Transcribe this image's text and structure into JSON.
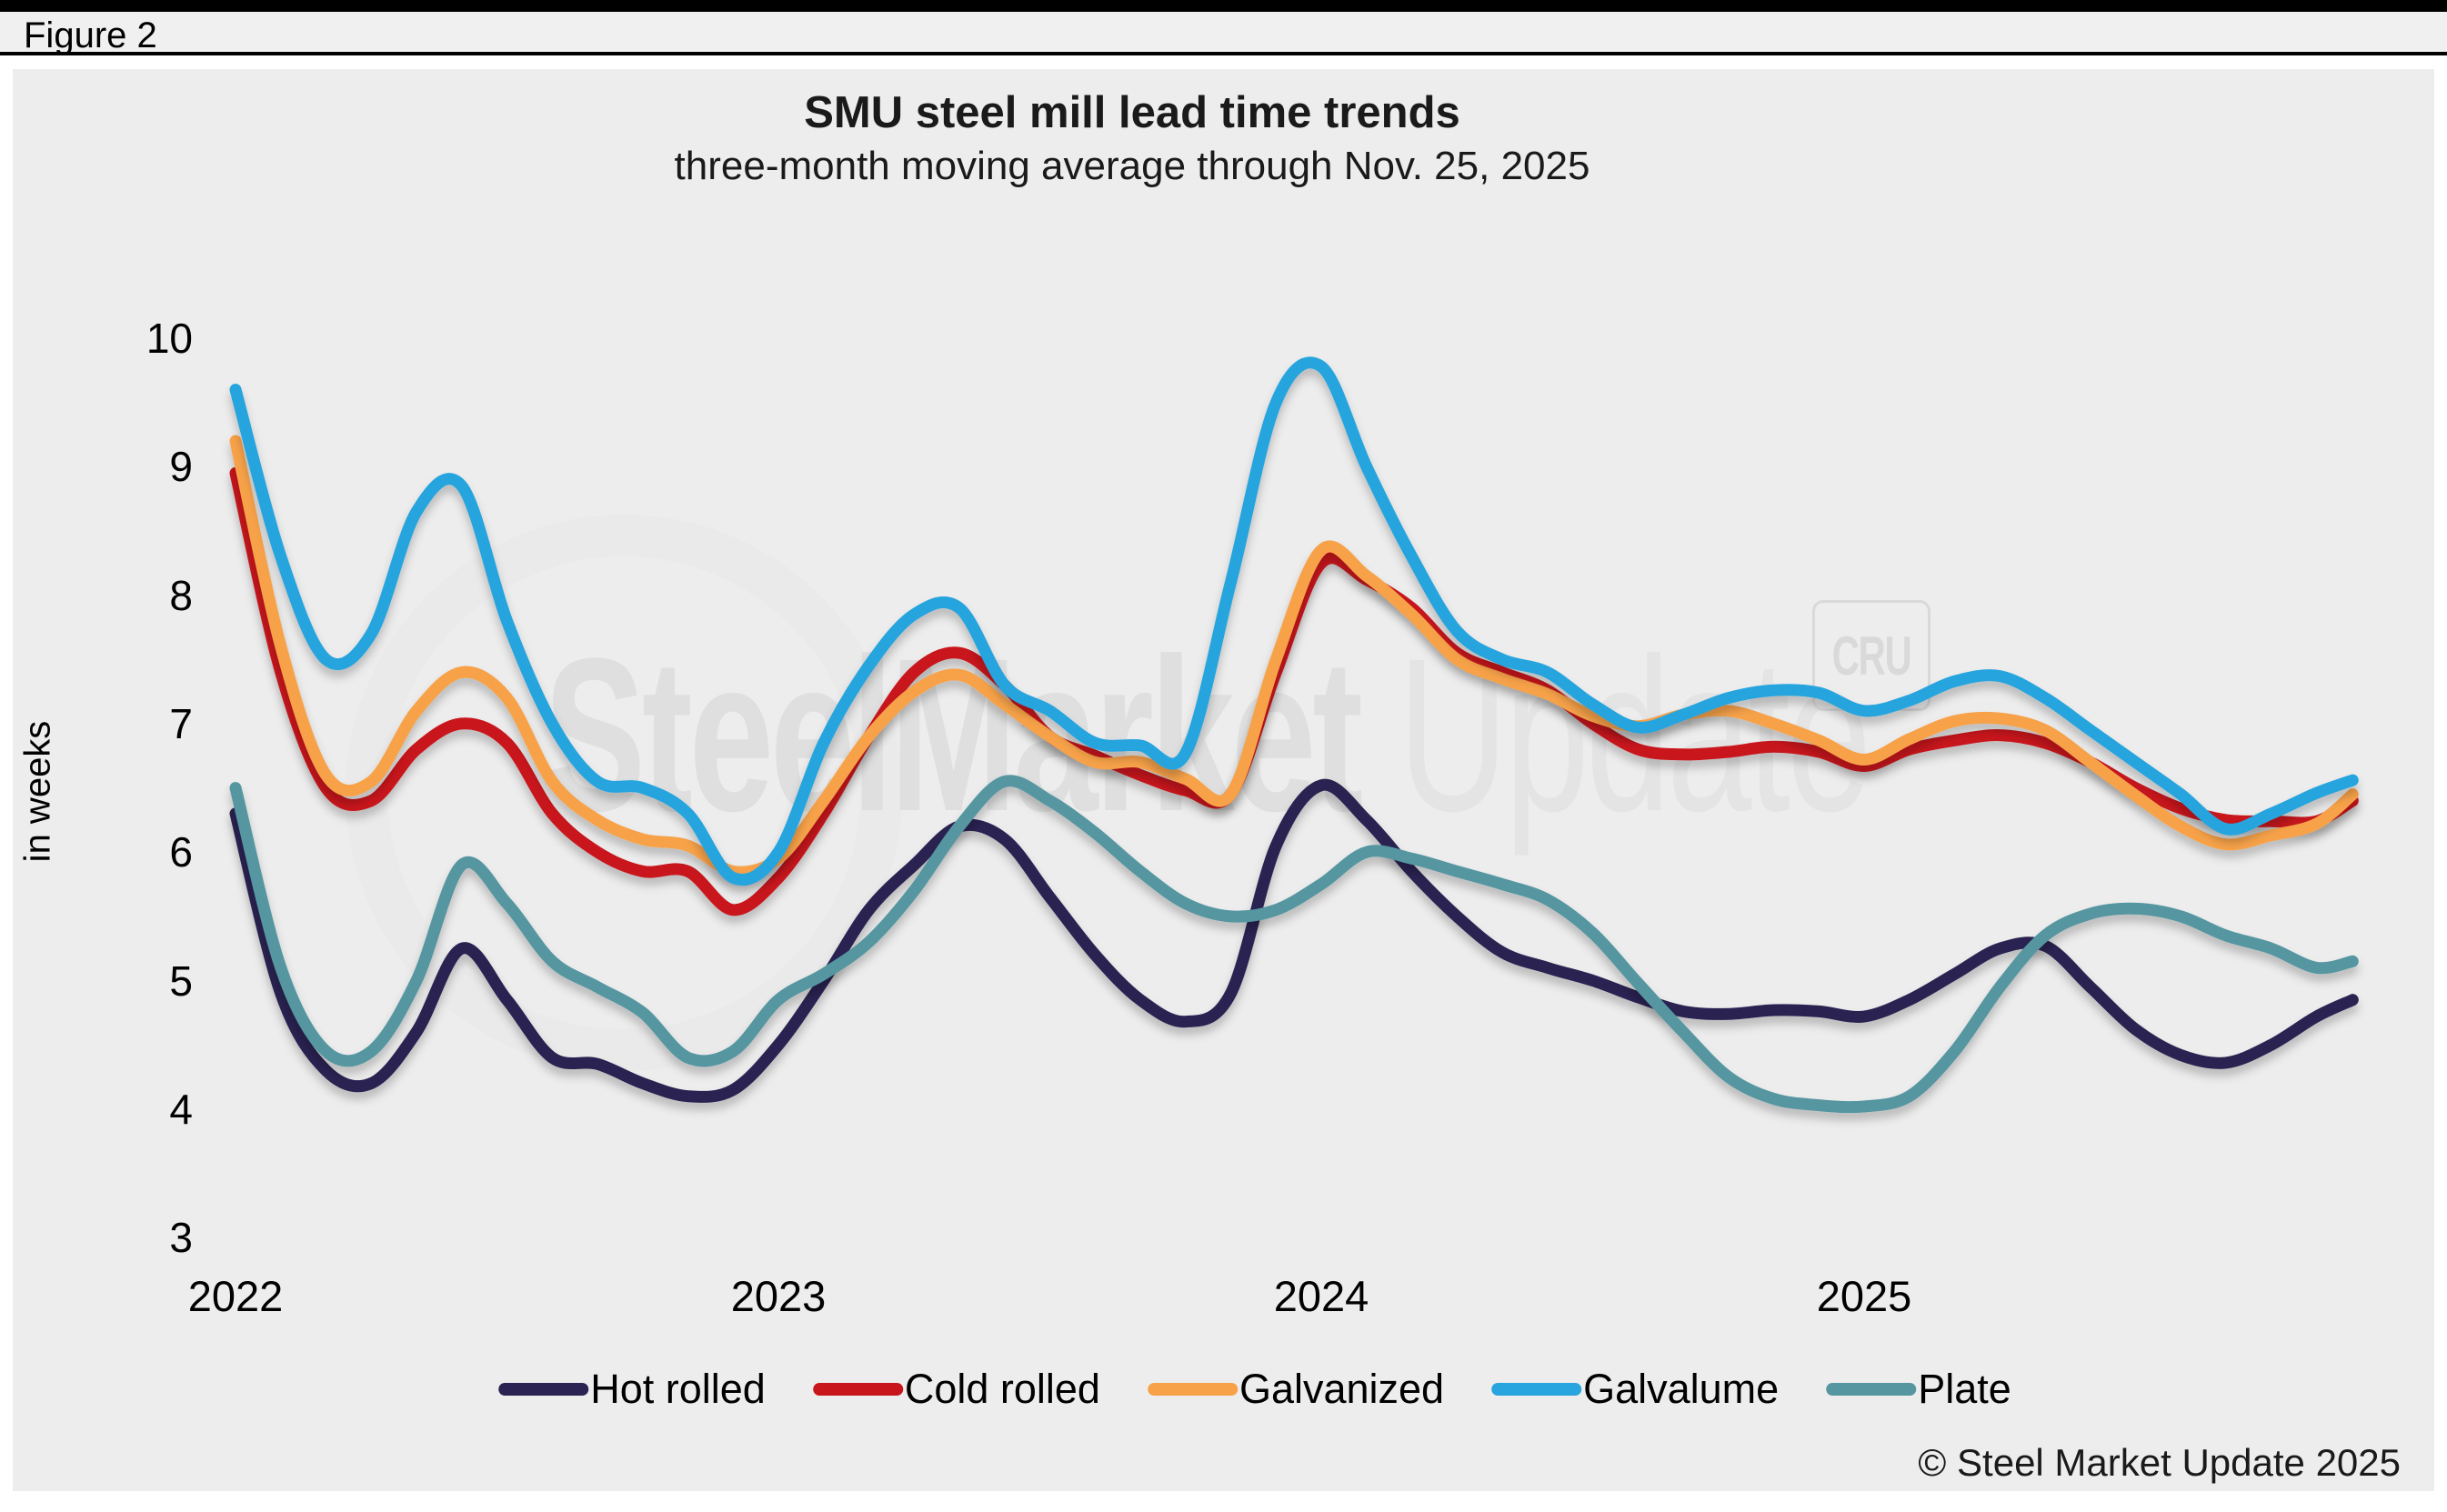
{
  "figure_label": "Figure 2",
  "chart_data": {
    "type": "line",
    "title": "SMU steel mill lead time trends",
    "subtitle": "three-month moving average through Nov. 25, 2025",
    "ylabel": "in weeks",
    "ylim": [
      3,
      10
    ],
    "y_ticks": [
      10,
      9,
      8,
      7,
      6,
      5,
      4,
      3
    ],
    "x_ticks": [
      {
        "label": "2022",
        "month": 0
      },
      {
        "label": "2023",
        "month": 12
      },
      {
        "label": "2024",
        "month": 24
      },
      {
        "label": "2025",
        "month": 36
      }
    ],
    "x_unit": "months since Jan 2022, last point Nov 25 2025",
    "grid": false,
    "legend_position": "bottom",
    "months": [
      0,
      1,
      2,
      3,
      4,
      5,
      6,
      7,
      8,
      9,
      10,
      11,
      12,
      13,
      14,
      15,
      16,
      17,
      18,
      19,
      20,
      21,
      22,
      23,
      24,
      25,
      26,
      27,
      28,
      29,
      30,
      31,
      32,
      33,
      34,
      35,
      36,
      37,
      38,
      39,
      40,
      41,
      42,
      43,
      44,
      45,
      46,
      46.8
    ],
    "series": [
      {
        "name": "Hot rolled",
        "color": "#2b2351",
        "values": [
          6.3,
          4.9,
          4.3,
          4.2,
          4.6,
          5.25,
          4.85,
          4.4,
          4.35,
          4.2,
          4.1,
          4.15,
          4.5,
          5.0,
          5.55,
          5.9,
          6.2,
          6.1,
          5.65,
          5.2,
          4.85,
          4.68,
          4.9,
          6.05,
          6.52,
          6.25,
          5.85,
          5.5,
          5.22,
          5.1,
          5.0,
          4.87,
          4.76,
          4.74,
          4.77,
          4.76,
          4.72,
          4.85,
          5.05,
          5.25,
          5.27,
          4.95,
          4.62,
          4.42,
          4.36,
          4.5,
          4.72,
          4.85
        ]
      },
      {
        "name": "Cold rolled",
        "color": "#c8151c",
        "values": [
          8.95,
          7.4,
          6.5,
          6.4,
          6.8,
          7.0,
          6.85,
          6.3,
          6.0,
          5.85,
          5.85,
          5.55,
          5.8,
          6.3,
          6.9,
          7.4,
          7.55,
          7.3,
          6.9,
          6.75,
          6.6,
          6.48,
          6.45,
          7.4,
          8.25,
          8.12,
          7.9,
          7.55,
          7.4,
          7.26,
          7.0,
          6.8,
          6.76,
          6.78,
          6.82,
          6.78,
          6.67,
          6.8,
          6.87,
          6.91,
          6.85,
          6.7,
          6.5,
          6.34,
          6.25,
          6.24,
          6.24,
          6.4
        ]
      },
      {
        "name": "Galvanized",
        "color": "#f7a249",
        "values": [
          9.2,
          7.6,
          6.6,
          6.55,
          7.1,
          7.4,
          7.2,
          6.55,
          6.25,
          6.1,
          6.05,
          5.85,
          5.95,
          6.4,
          6.9,
          7.25,
          7.38,
          7.15,
          6.9,
          6.7,
          6.7,
          6.57,
          6.45,
          7.5,
          8.35,
          8.15,
          7.85,
          7.5,
          7.35,
          7.23,
          7.06,
          6.98,
          7.07,
          7.1,
          7.0,
          6.87,
          6.72,
          6.88,
          7.02,
          7.04,
          6.95,
          6.7,
          6.44,
          6.2,
          6.06,
          6.13,
          6.22,
          6.45
        ]
      },
      {
        "name": "Galvalume",
        "color": "#28a4de",
        "values": [
          9.6,
          8.3,
          7.5,
          7.7,
          8.65,
          8.85,
          7.8,
          7.0,
          6.55,
          6.5,
          6.3,
          5.8,
          6.0,
          6.85,
          7.45,
          7.85,
          7.9,
          7.3,
          7.1,
          6.85,
          6.83,
          6.77,
          8.1,
          9.5,
          9.78,
          9.0,
          8.3,
          7.72,
          7.5,
          7.4,
          7.15,
          6.97,
          7.07,
          7.2,
          7.26,
          7.24,
          7.1,
          7.18,
          7.33,
          7.37,
          7.2,
          6.95,
          6.7,
          6.45,
          6.18,
          6.3,
          6.46,
          6.56
        ]
      },
      {
        "name": "Plate",
        "color": "#5596a1",
        "values": [
          6.5,
          5.1,
          4.45,
          4.45,
          5.0,
          5.9,
          5.6,
          5.15,
          4.95,
          4.75,
          4.4,
          4.45,
          4.85,
          5.05,
          5.3,
          5.7,
          6.2,
          6.55,
          6.4,
          6.15,
          5.85,
          5.6,
          5.5,
          5.55,
          5.75,
          6.0,
          5.95,
          5.85,
          5.75,
          5.63,
          5.37,
          4.98,
          4.6,
          4.25,
          4.08,
          4.03,
          4.02,
          4.1,
          4.45,
          4.95,
          5.35,
          5.52,
          5.56,
          5.5,
          5.35,
          5.25,
          5.1,
          5.15
        ]
      }
    ]
  },
  "watermark": {
    "brand_bold": "SteelMarket",
    "brand_light": " Update",
    "badge": "CRU"
  },
  "footer": {
    "copyright": "© Steel Market Update 2025"
  }
}
